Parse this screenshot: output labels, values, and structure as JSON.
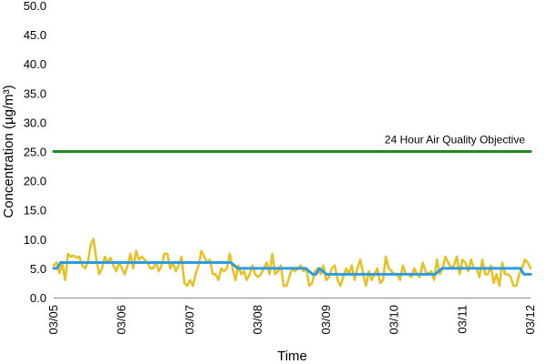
{
  "chart_data": {
    "type": "line",
    "title": "",
    "xlabel": "Time",
    "ylabel": "Concentration (µg/m³)",
    "ylim": [
      0,
      50
    ],
    "yticks": [
      "0.0",
      "5.0",
      "10.0",
      "15.0",
      "20.0",
      "25.0",
      "30.0",
      "35.0",
      "40.0",
      "45.0",
      "50.0"
    ],
    "xlim": [
      0,
      7
    ],
    "xticks": [
      "03/05",
      "03/06",
      "03/07",
      "03/08",
      "03/09",
      "03/10",
      "03/11",
      "03/12"
    ],
    "grid": false,
    "legend": false,
    "annotations": [
      {
        "text": "24 Hour Air Quality Objective",
        "x": 4.6,
        "y": 25.8
      }
    ],
    "series": [
      {
        "color": "#E8C020",
        "style": "hourly",
        "x": [
          0.0,
          0.042,
          0.083,
          0.125,
          0.167,
          0.208,
          0.25,
          0.292,
          0.333,
          0.375,
          0.417,
          0.458,
          0.5,
          0.542,
          0.583,
          0.625,
          0.667,
          0.708,
          0.75,
          0.792,
          0.833,
          0.875,
          0.917,
          0.958,
          1.0,
          1.042,
          1.083,
          1.125,
          1.167,
          1.208,
          1.25,
          1.292,
          1.333,
          1.375,
          1.417,
          1.458,
          1.5,
          1.542,
          1.583,
          1.625,
          1.667,
          1.708,
          1.75,
          1.792,
          1.833,
          1.875,
          1.917,
          1.958,
          2.0,
          2.042,
          2.083,
          2.125,
          2.167,
          2.208,
          2.25,
          2.292,
          2.333,
          2.375,
          2.417,
          2.458,
          2.5,
          2.542,
          2.583,
          2.625,
          2.667,
          2.708,
          2.75,
          2.792,
          2.833,
          2.875,
          2.917,
          2.958,
          3.0,
          3.042,
          3.083,
          3.125,
          3.167,
          3.208,
          3.25,
          3.292,
          3.333,
          3.375,
          3.417,
          3.458,
          3.5,
          3.542,
          3.583,
          3.625,
          3.667,
          3.708,
          3.75,
          3.792,
          3.833,
          3.875,
          3.917,
          3.958,
          4.0,
          4.042,
          4.083,
          4.125,
          4.167,
          4.208,
          4.25,
          4.292,
          4.333,
          4.375,
          4.417,
          4.458,
          4.5,
          4.542,
          4.583,
          4.625,
          4.667,
          4.708,
          4.75,
          4.792,
          4.833,
          4.875,
          4.917,
          4.958,
          5.0,
          5.042,
          5.083,
          5.125,
          5.167,
          5.208,
          5.25,
          5.292,
          5.333,
          5.375,
          5.417,
          5.458,
          5.5,
          5.542,
          5.583,
          5.625,
          5.667,
          5.708,
          5.75,
          5.792,
          5.833,
          5.875,
          5.917,
          5.958,
          6.0,
          6.042,
          6.083,
          6.125,
          6.167,
          6.208,
          6.25,
          6.292,
          6.333,
          6.375,
          6.417,
          6.458,
          6.5,
          6.542,
          6.583,
          6.625,
          6.667,
          6.708,
          6.75,
          6.792,
          6.833,
          6.875,
          6.917,
          6.958,
          7.0
        ],
        "y": [
          5.5,
          6.0,
          4.2,
          5.8,
          3.0,
          7.5,
          7.0,
          7.2,
          6.8,
          7.0,
          5.5,
          5.0,
          6.0,
          9.0,
          10.0,
          6.5,
          4.0,
          5.0,
          7.0,
          6.0,
          6.8,
          5.5,
          4.5,
          6.0,
          5.0,
          4.0,
          5.5,
          7.5,
          5.0,
          8.0,
          6.5,
          7.0,
          6.5,
          6.0,
          5.0,
          5.0,
          6.0,
          4.5,
          5.5,
          7.5,
          7.5,
          5.0,
          6.0,
          4.5,
          5.5,
          7.0,
          2.5,
          2.0,
          3.0,
          2.0,
          4.0,
          5.5,
          8.0,
          7.0,
          6.0,
          6.5,
          4.0,
          4.0,
          3.0,
          5.0,
          4.5,
          5.0,
          7.5,
          5.0,
          3.0,
          5.5,
          4.0,
          4.5,
          3.0,
          4.0,
          5.5,
          4.0,
          3.5,
          4.0,
          5.0,
          6.0,
          4.0,
          7.5,
          4.0,
          4.5,
          5.5,
          2.0,
          2.0,
          3.5,
          5.0,
          4.5,
          5.0,
          5.5,
          4.5,
          5.0,
          2.0,
          2.5,
          4.5,
          5.0,
          4.0,
          5.5,
          3.0,
          3.5,
          5.0,
          5.5,
          3.0,
          2.0,
          3.5,
          5.0,
          4.0,
          5.5,
          3.0,
          5.0,
          6.5,
          4.0,
          2.0,
          4.5,
          3.0,
          4.0,
          5.0,
          2.5,
          3.0,
          7.0,
          5.0,
          4.5,
          4.0,
          4.0,
          3.0,
          5.5,
          4.0,
          4.0,
          3.5,
          5.0,
          4.0,
          3.5,
          6.0,
          4.5,
          4.0,
          4.5,
          3.0,
          6.5,
          4.0,
          5.0,
          7.0,
          6.0,
          5.0,
          5.5,
          7.0,
          4.0,
          6.5,
          6.0,
          4.5,
          6.5,
          5.0,
          5.0,
          3.5,
          6.5,
          4.0,
          4.0,
          5.5,
          2.5,
          4.0,
          2.0,
          6.0,
          4.0,
          4.0,
          3.5,
          2.0,
          2.0,
          4.0,
          5.0,
          6.5,
          6.0,
          5.0
        ]
      },
      {
        "color": "#2E9BE0",
        "style": "24h-rolling",
        "x": [
          0.0,
          0.05,
          0.1,
          0.15,
          1.0,
          2.0,
          2.6,
          2.7,
          2.8,
          3.0,
          3.5,
          3.7,
          3.8,
          3.85,
          3.9,
          4.0,
          4.5,
          5.0,
          5.6,
          5.7,
          6.0,
          6.5,
          6.85,
          6.9,
          7.0
        ],
        "y": [
          5.0,
          5.0,
          6.0,
          6.0,
          6.0,
          6.0,
          6.0,
          5.0,
          5.0,
          5.0,
          5.0,
          5.0,
          4.0,
          4.0,
          5.0,
          4.0,
          4.0,
          4.0,
          4.0,
          5.0,
          5.0,
          5.0,
          5.0,
          4.0,
          4.0
        ]
      },
      {
        "color": "#1F8A1F",
        "style": "objective",
        "x": [
          0,
          7
        ],
        "y": [
          25,
          25
        ]
      }
    ]
  }
}
